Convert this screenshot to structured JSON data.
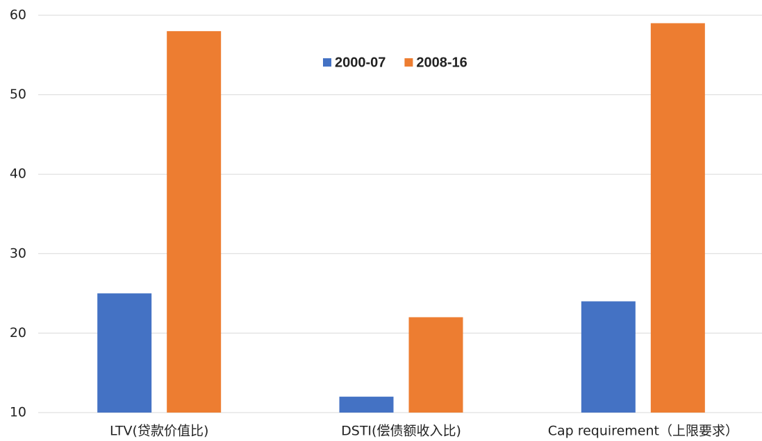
{
  "chart_data": {
    "type": "bar",
    "categories": [
      "LTV(贷款价值比)",
      "DSTI(偿债额收入比)",
      "Cap requirement（上限要求）"
    ],
    "series": [
      {
        "name": "2000-07",
        "color": "#4472c4",
        "values": [
          25,
          12,
          24
        ]
      },
      {
        "name": "2008-16",
        "color": "#ed7d31",
        "values": [
          58,
          22,
          59
        ]
      }
    ],
    "ylim": [
      10,
      60
    ],
    "yticks": [
      10,
      20,
      30,
      40,
      50,
      60
    ],
    "grid": true,
    "legend": "top"
  }
}
